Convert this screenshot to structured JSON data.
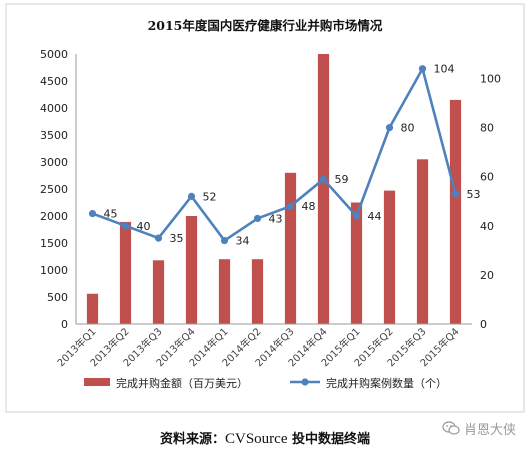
{
  "chart_data": {
    "type": "bar+line",
    "title": "2015年度国内医疗健康行业并购市场情况",
    "categories": [
      "2013年Q1",
      "2013年Q2",
      "2013年Q3",
      "2013年Q4",
      "2014年Q1",
      "2014年Q2",
      "2014年Q3",
      "2014年Q4",
      "2015年Q1",
      "2015年Q2",
      "2015年Q3",
      "2015年Q4"
    ],
    "series": [
      {
        "name": "完成并购金额（百万美元）",
        "type": "bar",
        "axis": "left",
        "color": "#c0504d",
        "values": [
          560,
          1890,
          1180,
          2000,
          1200,
          1200,
          2800,
          5000,
          2250,
          2470,
          3050,
          4150
        ]
      },
      {
        "name": "完成并购案例数量（个）",
        "type": "line",
        "axis": "right",
        "color": "#4f81bd",
        "values": [
          45,
          40,
          35,
          52,
          34,
          43,
          48,
          59,
          44,
          80,
          104,
          53
        ]
      }
    ],
    "y_left": {
      "min": 0,
      "max": 5000,
      "step": 500,
      "ticks": [
        "0",
        "500",
        "1000",
        "1500",
        "2000",
        "2500",
        "3000",
        "3500",
        "4000",
        "4500",
        "5000"
      ]
    },
    "y_right": {
      "min": 0,
      "max": 110,
      "step": 20,
      "ticks": [
        "0",
        "20",
        "40",
        "60",
        "80",
        "100"
      ]
    },
    "data_labels": [
      "45",
      "40",
      "35",
      "52",
      "34",
      "43",
      "48",
      "59",
      "44",
      "80",
      "104",
      "53"
    ],
    "grid": false,
    "legend_position": "bottom"
  },
  "footer": {
    "source_prefix": "资料来源：",
    "source_name": "CVSource",
    "source_suffix": " 投中数据终端"
  },
  "watermark": {
    "text": "肖恩大侠",
    "icon": "wechat-icon"
  }
}
